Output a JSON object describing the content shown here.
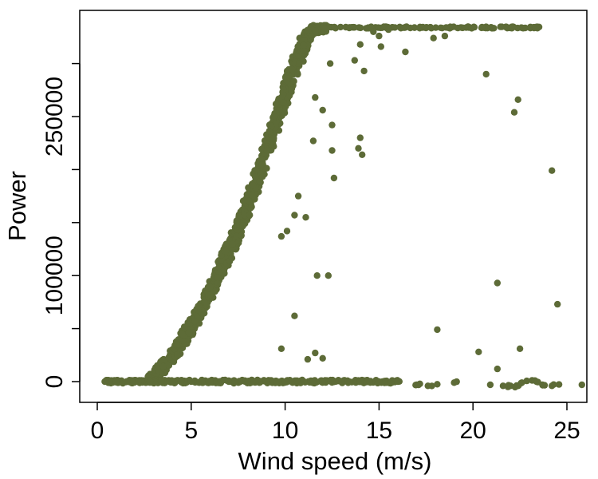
{
  "chart_data": {
    "type": "scatter",
    "title": "",
    "xlabel": "Wind speed (m/s)",
    "ylabel": "Power",
    "xlim": [
      0,
      26
    ],
    "ylim": [
      -20000,
      340000
    ],
    "x_ticks": [
      0,
      5,
      10,
      15,
      20,
      25
    ],
    "y_ticks": [
      0,
      50000,
      100000,
      150000,
      200000,
      250000,
      300000
    ],
    "y_tick_labels": [
      "0",
      "",
      "100000",
      "",
      "",
      "250000",
      ""
    ],
    "grid": false,
    "legend": "none",
    "point_color": "#5d6b37",
    "series": [
      {
        "points_description_free": true,
        "main_curve": [
          [
            2.8,
            2000
          ],
          [
            3.2,
            8000
          ],
          [
            3.6,
            15000
          ],
          [
            4.0,
            25000
          ],
          [
            4.4,
            35000
          ],
          [
            4.8,
            45000
          ],
          [
            5.2,
            58000
          ],
          [
            5.6,
            72000
          ],
          [
            6.0,
            85000
          ],
          [
            6.4,
            100000
          ],
          [
            6.8,
            115000
          ],
          [
            7.2,
            130000
          ],
          [
            7.6,
            148000
          ],
          [
            8.0,
            165000
          ],
          [
            8.4,
            185000
          ],
          [
            8.8,
            205000
          ],
          [
            9.2,
            228000
          ],
          [
            9.6,
            250000
          ],
          [
            10.0,
            272000
          ],
          [
            10.4,
            292000
          ],
          [
            10.8,
            310000
          ],
          [
            11.2,
            328000
          ],
          [
            11.6,
            333000
          ],
          [
            12.0,
            334000
          ],
          [
            13.0,
            334000
          ],
          [
            14.0,
            334000
          ],
          [
            15.0,
            334000
          ],
          [
            16.0,
            334000
          ],
          [
            17.0,
            334000
          ],
          [
            18.0,
            334000
          ],
          [
            19.0,
            334000
          ],
          [
            20.0,
            334000
          ],
          [
            21.0,
            334000
          ],
          [
            22.0,
            334000
          ],
          [
            22.8,
            334000
          ],
          [
            23.6,
            334000
          ]
        ],
        "zero_line": [
          [
            0.4,
            0
          ],
          [
            1.0,
            0
          ],
          [
            1.6,
            0
          ],
          [
            2.2,
            0
          ],
          [
            2.8,
            0
          ],
          [
            3.4,
            0
          ],
          [
            4.0,
            0
          ],
          [
            5.0,
            0
          ],
          [
            6.0,
            0
          ],
          [
            7.0,
            0
          ],
          [
            8.0,
            0
          ],
          [
            9.0,
            0
          ],
          [
            10.0,
            0
          ],
          [
            11.0,
            0
          ],
          [
            12.0,
            0
          ],
          [
            13.0,
            0
          ],
          [
            14.0,
            0
          ],
          [
            15.0,
            0
          ],
          [
            16.0,
            0
          ],
          [
            17.0,
            -3000
          ],
          [
            17.6,
            -4000
          ],
          [
            19.0,
            -1000
          ],
          [
            21.6,
            -4000
          ],
          [
            22.0,
            -4000
          ],
          [
            22.4,
            -4000
          ],
          [
            22.6,
            -1000
          ],
          [
            23.3,
            1000
          ],
          [
            23.7,
            -3000
          ],
          [
            24.2,
            -4000
          ],
          [
            25.8,
            -3000
          ]
        ],
        "outliers": [
          [
            9.8,
            31000
          ],
          [
            10.5,
            62000
          ],
          [
            11.2,
            21000
          ],
          [
            11.6,
            27000
          ],
          [
            12.0,
            22000
          ],
          [
            11.7,
            100000
          ],
          [
            12.3,
            100000
          ],
          [
            9.8,
            137000
          ],
          [
            10.1,
            142000
          ],
          [
            10.5,
            157000
          ],
          [
            11.1,
            155000
          ],
          [
            10.7,
            175000
          ],
          [
            11.5,
            227000
          ],
          [
            12.5,
            242000
          ],
          [
            12.6,
            192000
          ],
          [
            11.6,
            268000
          ],
          [
            12.0,
            256000
          ],
          [
            12.5,
            218000
          ],
          [
            13.9,
            220000
          ],
          [
            14.1,
            214000
          ],
          [
            14.0,
            230000
          ],
          [
            12.4,
            300000
          ],
          [
            14.0,
            318000
          ],
          [
            13.7,
            303000
          ],
          [
            15.1,
            316000
          ],
          [
            16.4,
            311000
          ],
          [
            14.7,
            330000
          ],
          [
            15.0,
            326000
          ],
          [
            17.9,
            324000
          ],
          [
            18.5,
            326000
          ],
          [
            14.2,
            293000
          ],
          [
            20.7,
            290000
          ],
          [
            22.4,
            266000
          ],
          [
            22.2,
            254000
          ],
          [
            24.2,
            199000
          ],
          [
            24.5,
            73000
          ],
          [
            21.3,
            93000
          ],
          [
            22.5,
            31000
          ],
          [
            20.3,
            28000
          ],
          [
            21.3,
            12000
          ],
          [
            18.1,
            49000
          ],
          [
            15.5,
            332000
          ]
        ]
      }
    ]
  }
}
